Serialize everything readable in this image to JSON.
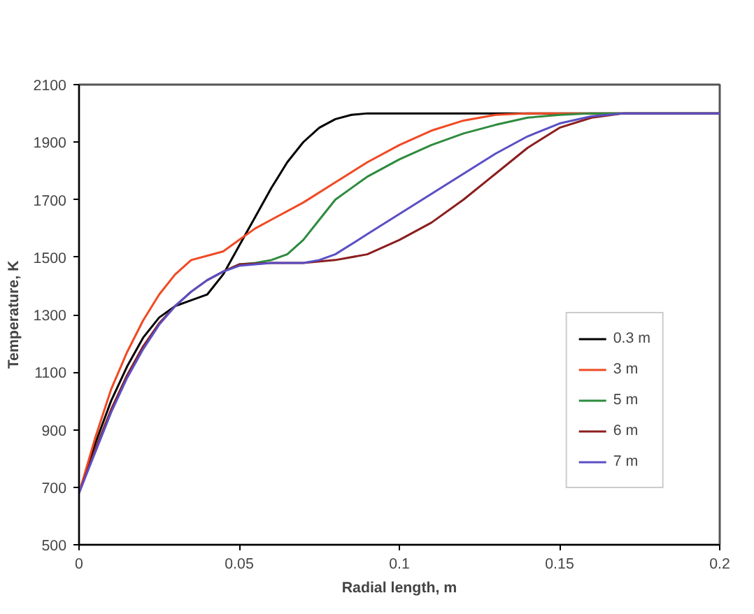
{
  "chart_data": {
    "type": "line",
    "xlabel": "Radial length, m",
    "ylabel": "Temperature, K",
    "xlim": [
      0,
      0.2
    ],
    "xticks": [
      0,
      0.05,
      0.1,
      0.15,
      0.2
    ],
    "ylim": [
      500,
      2100
    ],
    "yticks": [
      500,
      700,
      900,
      1100,
      1300,
      1500,
      1700,
      1900,
      2100
    ],
    "grid": false,
    "legend": "bottom right",
    "marker": "none",
    "line_style": "solid",
    "series": [
      {
        "name": "0.3 m",
        "color": "#000000",
        "x": [
          0,
          0.005,
          0.01,
          0.015,
          0.02,
          0.025,
          0.03,
          0.035,
          0.04,
          0.045,
          0.05,
          0.055,
          0.06,
          0.065,
          0.07,
          0.075,
          0.08,
          0.085,
          0.09,
          0.1,
          0.2
        ],
        "values": [
          680,
          850,
          1000,
          1120,
          1220,
          1290,
          1330,
          1350,
          1370,
          1440,
          1540,
          1640,
          1740,
          1830,
          1900,
          1950,
          1980,
          1995,
          2000,
          2000,
          2000
        ]
      },
      {
        "name": "3 m",
        "color": "#f04a24",
        "x": [
          0,
          0.005,
          0.01,
          0.015,
          0.02,
          0.025,
          0.03,
          0.035,
          0.04,
          0.045,
          0.05,
          0.055,
          0.06,
          0.07,
          0.08,
          0.09,
          0.1,
          0.11,
          0.12,
          0.13,
          0.14,
          0.2
        ],
        "values": [
          680,
          870,
          1040,
          1170,
          1280,
          1370,
          1440,
          1490,
          1505,
          1520,
          1560,
          1600,
          1630,
          1690,
          1760,
          1830,
          1890,
          1940,
          1975,
          1995,
          2000,
          2000
        ]
      },
      {
        "name": "5 m",
        "color": "#2e8b3e",
        "x": [
          0.045,
          0.05,
          0.055,
          0.06,
          0.065,
          0.07,
          0.075,
          0.08,
          0.09,
          0.1,
          0.11,
          0.12,
          0.13,
          0.14,
          0.15,
          0.16,
          0.2
        ],
        "values": [
          1450,
          1475,
          1480,
          1490,
          1510,
          1560,
          1630,
          1700,
          1780,
          1840,
          1890,
          1930,
          1960,
          1985,
          1995,
          2000,
          2000
        ]
      },
      {
        "name": "6 m",
        "color": "#8b1e1e",
        "x": [
          0,
          0.005,
          0.01,
          0.015,
          0.02,
          0.025,
          0.03,
          0.035,
          0.04,
          0.045,
          0.05,
          0.06,
          0.07,
          0.08,
          0.09,
          0.1,
          0.11,
          0.12,
          0.13,
          0.14,
          0.15,
          0.16,
          0.17,
          0.2
        ],
        "values": [
          680,
          830,
          970,
          1090,
          1190,
          1270,
          1330,
          1380,
          1420,
          1450,
          1475,
          1480,
          1480,
          1490,
          1510,
          1560,
          1620,
          1700,
          1790,
          1880,
          1950,
          1985,
          2000,
          2000
        ]
      },
      {
        "name": "7 m",
        "color": "#5a4fc4",
        "x": [
          0,
          0.005,
          0.01,
          0.015,
          0.02,
          0.025,
          0.03,
          0.035,
          0.04,
          0.045,
          0.05,
          0.06,
          0.07,
          0.075,
          0.08,
          0.09,
          0.1,
          0.11,
          0.12,
          0.13,
          0.14,
          0.15,
          0.16,
          0.17,
          0.2
        ],
        "values": [
          680,
          820,
          960,
          1080,
          1180,
          1265,
          1330,
          1380,
          1420,
          1450,
          1470,
          1480,
          1480,
          1490,
          1510,
          1580,
          1650,
          1720,
          1790,
          1860,
          1920,
          1965,
          1990,
          2000,
          2000
        ]
      }
    ]
  }
}
